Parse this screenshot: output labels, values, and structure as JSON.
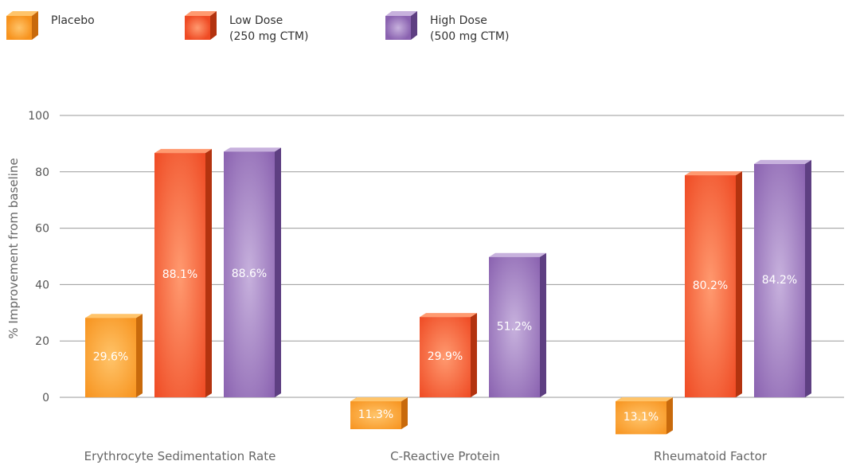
{
  "legend": [
    {
      "label": "Placebo",
      "color": "#f7931e",
      "light": "#ffc46a",
      "side": "#c86a0c"
    },
    {
      "label": "Low Dose\n(250 mg CTM)",
      "color": "#ef4b24",
      "light": "#ff9a70",
      "side": "#b3330f"
    },
    {
      "label": "High Dose\n(500 mg CTM)",
      "color": "#8a62b0",
      "light": "#c7b1dd",
      "side": "#5e3f82"
    }
  ],
  "chart_data": {
    "type": "bar",
    "ylabel": "% Improvement from baseline",
    "ylim": [
      -15,
      100
    ],
    "yticks": [
      0,
      20,
      40,
      60,
      80,
      100
    ],
    "grid": true,
    "legend_position": "top-left",
    "categories": [
      "Erythrocyte Sedimentation Rate",
      "C-Reactive Protein",
      "Rheumatoid Factor"
    ],
    "series": [
      {
        "name": "Placebo",
        "values": [
          29.6,
          -11.3,
          -13.1
        ],
        "labels": [
          "29.6%",
          "11.3%",
          "13.1%"
        ]
      },
      {
        "name": "Low Dose (250 mg CTM)",
        "values": [
          88.1,
          29.9,
          80.2
        ],
        "labels": [
          "88.1%",
          "29.9%",
          "80.2%"
        ]
      },
      {
        "name": "High Dose (500 mg CTM)",
        "values": [
          88.6,
          51.2,
          84.2
        ],
        "labels": [
          "88.6%",
          "51.2%",
          "84.2%"
        ]
      }
    ]
  }
}
